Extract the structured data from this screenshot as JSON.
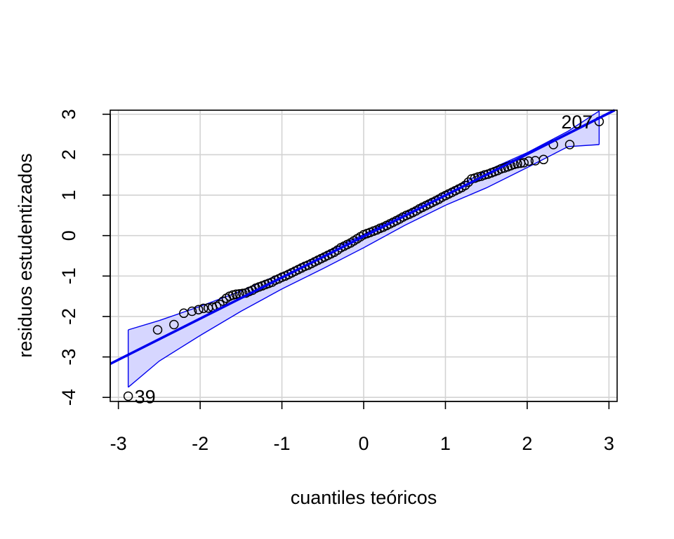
{
  "chart_data": {
    "type": "scatter",
    "title": "",
    "xlabel": "cuantiles teóricos",
    "ylabel": "residuos estudentizados",
    "xlim": [
      -3.1,
      3.1
    ],
    "ylim": [
      -4.1,
      3.1
    ],
    "x_ticks": [
      -3,
      -2,
      -1,
      0,
      1,
      2,
      3
    ],
    "x_tick_labels": [
      "-3",
      "-2",
      "-1",
      "0",
      "1",
      "2",
      "3"
    ],
    "y_ticks": [
      -4,
      -3,
      -2,
      -1,
      0,
      1,
      2,
      3
    ],
    "y_tick_labels": [
      "-4",
      "-3",
      "-2",
      "-1",
      "0",
      "1",
      "2",
      "3"
    ],
    "grid": true,
    "reference_line": {
      "x": [
        -3.1,
        3.1
      ],
      "y": [
        -3.17,
        3.13
      ],
      "color": "#0000ee"
    },
    "confidence_band": {
      "color": "#0000ee",
      "fill": "#d6d6ff",
      "x": [
        -2.88,
        -2.5,
        -2.0,
        -1.5,
        -1.0,
        -0.5,
        0.0,
        0.5,
        1.0,
        1.5,
        2.0,
        2.5,
        2.88
      ],
      "upper": [
        -2.33,
        -2.1,
        -1.75,
        -1.37,
        -0.93,
        -0.45,
        0.03,
        0.55,
        1.07,
        1.6,
        2.05,
        2.58,
        3.08
      ],
      "lower": [
        -3.75,
        -3.1,
        -2.47,
        -1.87,
        -1.32,
        -0.82,
        -0.3,
        0.25,
        0.75,
        1.18,
        1.68,
        2.2,
        2.25
      ]
    },
    "points": {
      "x": [
        -2.88,
        -2.52,
        -2.32,
        -2.2,
        -2.1,
        -2.02,
        -1.96,
        -1.9,
        -1.85,
        -1.8,
        -1.76,
        -1.72,
        -1.68,
        -1.64,
        -1.6,
        -1.56,
        -1.52,
        -1.48,
        -1.44,
        -1.4,
        -1.36,
        -1.32,
        -1.28,
        -1.24,
        -1.2,
        -1.16,
        -1.12,
        -1.08,
        -1.04,
        -1.0,
        -0.96,
        -0.92,
        -0.88,
        -0.84,
        -0.8,
        -0.76,
        -0.72,
        -0.68,
        -0.64,
        -0.6,
        -0.56,
        -0.52,
        -0.48,
        -0.44,
        -0.4,
        -0.36,
        -0.32,
        -0.28,
        -0.24,
        -0.2,
        -0.16,
        -0.12,
        -0.08,
        -0.04,
        0.0,
        0.04,
        0.08,
        0.12,
        0.16,
        0.2,
        0.24,
        0.28,
        0.32,
        0.36,
        0.4,
        0.44,
        0.48,
        0.52,
        0.56,
        0.6,
        0.64,
        0.68,
        0.72,
        0.76,
        0.8,
        0.84,
        0.88,
        0.92,
        0.96,
        1.0,
        1.04,
        1.08,
        1.12,
        1.16,
        1.2,
        1.24,
        1.28,
        1.32,
        1.36,
        1.4,
        1.44,
        1.48,
        1.52,
        1.56,
        1.6,
        1.64,
        1.68,
        1.72,
        1.76,
        1.8,
        1.84,
        1.88,
        1.92,
        1.96,
        2.02,
        2.1,
        2.2,
        2.32,
        2.52,
        2.88
      ],
      "y": [
        -3.97,
        -2.33,
        -2.2,
        -1.92,
        -1.87,
        -1.83,
        -1.8,
        -1.79,
        -1.77,
        -1.75,
        -1.7,
        -1.62,
        -1.55,
        -1.5,
        -1.47,
        -1.45,
        -1.44,
        -1.43,
        -1.42,
        -1.38,
        -1.35,
        -1.3,
        -1.27,
        -1.24,
        -1.21,
        -1.18,
        -1.15,
        -1.1,
        -1.07,
        -1.03,
        -1.0,
        -0.96,
        -0.92,
        -0.88,
        -0.84,
        -0.8,
        -0.76,
        -0.73,
        -0.69,
        -0.65,
        -0.61,
        -0.57,
        -0.53,
        -0.49,
        -0.45,
        -0.41,
        -0.36,
        -0.3,
        -0.26,
        -0.22,
        -0.18,
        -0.13,
        -0.08,
        -0.03,
        0.02,
        0.05,
        0.08,
        0.11,
        0.14,
        0.18,
        0.21,
        0.25,
        0.29,
        0.33,
        0.37,
        0.41,
        0.46,
        0.5,
        0.53,
        0.57,
        0.61,
        0.66,
        0.7,
        0.74,
        0.78,
        0.82,
        0.86,
        0.9,
        0.95,
        0.99,
        1.03,
        1.07,
        1.11,
        1.15,
        1.19,
        1.24,
        1.32,
        1.4,
        1.42,
        1.45,
        1.47,
        1.5,
        1.52,
        1.55,
        1.58,
        1.61,
        1.65,
        1.67,
        1.7,
        1.73,
        1.76,
        1.78,
        1.79,
        1.8,
        1.84,
        1.85,
        1.88,
        2.25,
        2.25,
        2.82
      ],
      "marker": "open-circle",
      "color": "#000000"
    },
    "annotations": [
      {
        "text": "207",
        "x": 2.88,
        "y": 2.82,
        "side": "left"
      },
      {
        "text": "39",
        "x": -2.88,
        "y": -3.97,
        "side": "right"
      }
    ]
  }
}
